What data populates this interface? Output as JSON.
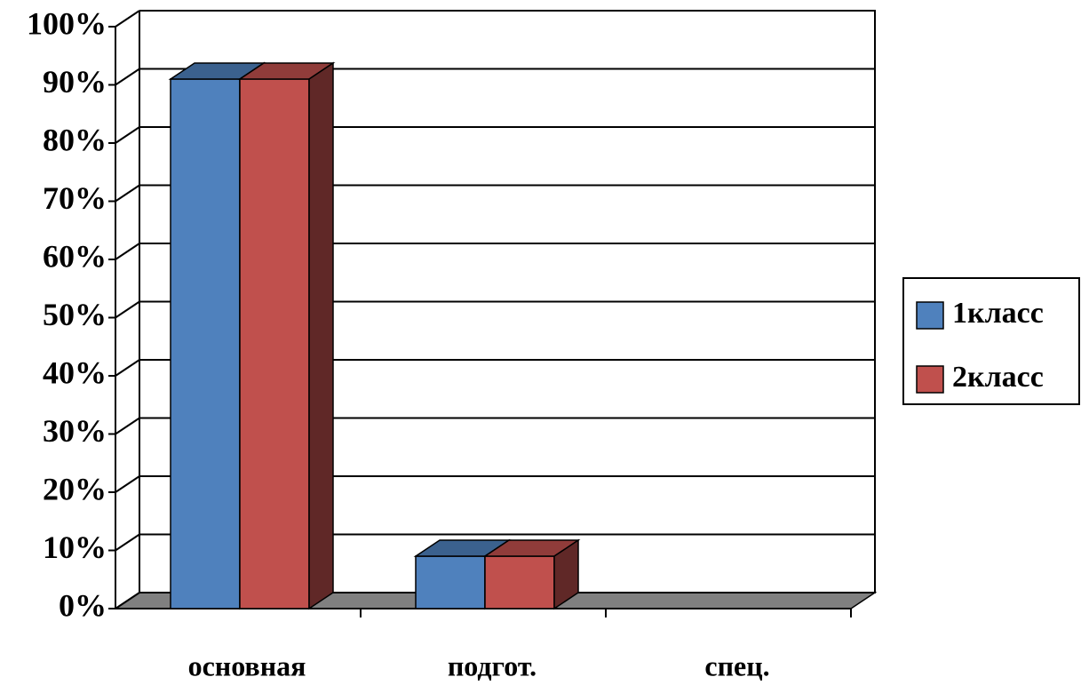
{
  "chart_data": {
    "type": "bar3d",
    "categories": [
      "основная",
      "подгот.",
      "спец."
    ],
    "series": [
      {
        "name": "1класс",
        "color": "#4f81bd",
        "values": [
          91,
          9,
          0
        ]
      },
      {
        "name": "2класс",
        "color": "#c0504d",
        "values": [
          91,
          9,
          0
        ]
      }
    ],
    "ylim": [
      0,
      100
    ],
    "yticks": [
      {
        "value": 0,
        "label": "0%"
      },
      {
        "value": 10,
        "label": "10%"
      },
      {
        "value": 20,
        "label": "20%"
      },
      {
        "value": 30,
        "label": "30%"
      },
      {
        "value": 40,
        "label": "40%"
      },
      {
        "value": 50,
        "label": "50%"
      },
      {
        "value": 60,
        "label": "60%"
      },
      {
        "value": 70,
        "label": "70%"
      },
      {
        "value": 80,
        "label": "80%"
      },
      {
        "value": 90,
        "label": "90%"
      },
      {
        "value": 100,
        "label": "100%"
      }
    ],
    "grid": true,
    "legend": "right"
  }
}
